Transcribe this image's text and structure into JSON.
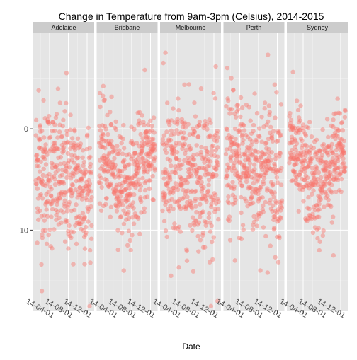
{
  "chart_data": {
    "type": "scatter",
    "title": "Change in Temperature from 9am-3pm (Celsius), 2014-2015",
    "xlabel": "Date",
    "ylabel": "",
    "facets": [
      "Adelaide",
      "Brisbane",
      "Melbourne",
      "Perth",
      "Sydney"
    ],
    "x_ticks": [
      "14-04-01",
      "14-08-01",
      "14-12-01"
    ],
    "y_ticks": [
      0,
      -10
    ],
    "ylim": [
      -18,
      9.5
    ],
    "xlim": [
      "2013-12-16",
      "2015-01-16"
    ],
    "grid": true,
    "point_color": "#F8766D",
    "panel_background": "#E5E5E5",
    "strip_background": "#CCCCCC",
    "series": [
      {
        "name": "Adelaide",
        "mean_start": -4,
        "mean_mid": -5,
        "mean_end": -6,
        "spread": 3.5,
        "notable_points": [
          [
            "2014-02-10",
            -16.0
          ],
          [
            "2014-07-20",
            5.5
          ],
          [
            "2014-01-20",
            3.8
          ],
          [
            "2014-12-20",
            -12.0
          ]
        ]
      },
      {
        "name": "Brisbane",
        "mean_start": -2,
        "mean_mid": -6,
        "mean_end": -1.5,
        "spread": 2.5,
        "notable_points": [
          [
            "2014-10-25",
            5.8
          ],
          [
            "2014-07-05",
            -11.5
          ],
          [
            "2014-02-01",
            2.8
          ]
        ]
      },
      {
        "name": "Melbourne",
        "mean_start": -5,
        "mean_mid": -4,
        "mean_end": -5,
        "spread": 3.5,
        "notable_points": [
          [
            "2014-01-20",
            7.5
          ],
          [
            "2014-12-25",
            -17.0
          ],
          [
            "2014-02-25",
            -14.5
          ]
        ]
      },
      {
        "name": "Perth",
        "mean_start": -3,
        "mean_mid": -4,
        "mean_end": -4,
        "spread": 3.5,
        "notable_points": [
          [
            "2014-01-10",
            6.0
          ],
          [
            "2014-10-01",
            7.3
          ],
          [
            "2014-03-01",
            -13.0
          ]
        ]
      },
      {
        "name": "Sydney",
        "mean_start": -2,
        "mean_mid": -6,
        "mean_end": -1.5,
        "spread": 2.5,
        "notable_points": [
          [
            "2014-01-25",
            5.6
          ],
          [
            "2014-07-15",
            -12.0
          ],
          [
            "2014-10-15",
            -12.5
          ]
        ]
      }
    ]
  }
}
